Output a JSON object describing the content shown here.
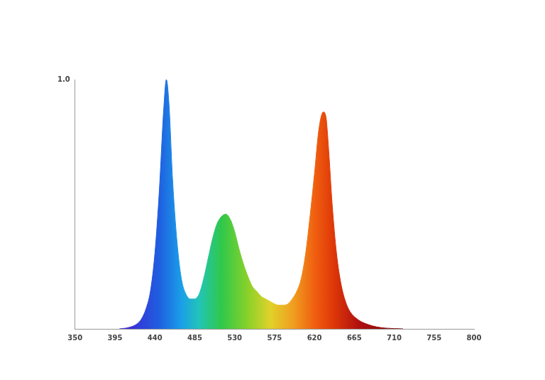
{
  "chart_data": {
    "type": "area",
    "x": [
      400,
      410,
      420,
      425,
      430,
      435,
      440,
      445,
      450,
      453,
      456,
      460,
      465,
      470,
      475,
      480,
      485,
      490,
      495,
      500,
      505,
      510,
      515,
      520,
      525,
      530,
      535,
      540,
      545,
      550,
      555,
      560,
      565,
      570,
      575,
      580,
      585,
      590,
      595,
      600,
      605,
      610,
      615,
      620,
      625,
      630,
      633,
      636,
      640,
      645,
      650,
      655,
      660,
      670,
      680,
      690,
      700,
      720
    ],
    "values": [
      0,
      0.005,
      0.02,
      0.04,
      0.08,
      0.15,
      0.3,
      0.55,
      0.88,
      1.0,
      0.9,
      0.6,
      0.35,
      0.2,
      0.14,
      0.12,
      0.12,
      0.14,
      0.2,
      0.28,
      0.36,
      0.42,
      0.45,
      0.46,
      0.44,
      0.39,
      0.32,
      0.26,
      0.21,
      0.17,
      0.15,
      0.13,
      0.12,
      0.11,
      0.1,
      0.095,
      0.095,
      0.1,
      0.12,
      0.15,
      0.2,
      0.3,
      0.45,
      0.62,
      0.8,
      0.87,
      0.85,
      0.72,
      0.5,
      0.3,
      0.18,
      0.11,
      0.07,
      0.035,
      0.018,
      0.008,
      0.003,
      0
    ],
    "xlim": [
      350,
      800
    ],
    "xticks": [
      350,
      395,
      440,
      485,
      530,
      575,
      620,
      665,
      710,
      755,
      800
    ],
    "ylim": [
      0,
      1
    ],
    "yticks": [
      {
        "value": 1,
        "label": "1.0"
      }
    ],
    "grid": false
  }
}
